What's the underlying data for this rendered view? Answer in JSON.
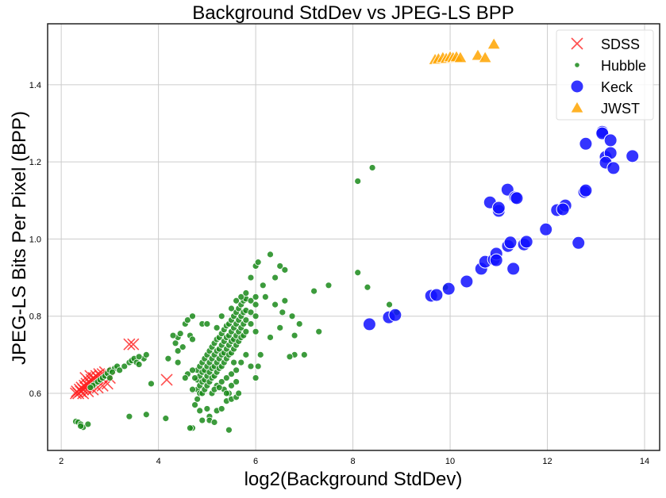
{
  "chart_data": {
    "type": "scatter",
    "title": "Background StdDev vs JPEG-LS BPP",
    "xlabel": "log2(Background StdDev)",
    "ylabel": "JPEG-LS Bits Per Pixel (BPP)",
    "xlim": [
      1.72,
      14.31
    ],
    "ylim": [
      0.452,
      1.558
    ],
    "xticks": [
      2,
      4,
      6,
      8,
      10,
      12,
      14
    ],
    "yticks": [
      0.6,
      0.8,
      1.0,
      1.2,
      1.4
    ],
    "xtick_labels": [
      "2",
      "4",
      "6",
      "8",
      "10",
      "12",
      "14"
    ],
    "ytick_labels": [
      "0.6",
      "0.8",
      "1.0",
      "1.2",
      "1.4"
    ],
    "grid": true,
    "legend_position": "top-right",
    "series": [
      {
        "name": "SDSS",
        "marker": "x",
        "color": "#ff2020",
        "points": [
          [
            2.3,
            0.6
          ],
          [
            2.32,
            0.605
          ],
          [
            2.35,
            0.6
          ],
          [
            2.38,
            0.61
          ],
          [
            2.4,
            0.605
          ],
          [
            2.42,
            0.615
          ],
          [
            2.45,
            0.61
          ],
          [
            2.48,
            0.62
          ],
          [
            2.5,
            0.615
          ],
          [
            2.52,
            0.625
          ],
          [
            2.55,
            0.62
          ],
          [
            2.57,
            0.63
          ],
          [
            2.6,
            0.625
          ],
          [
            2.62,
            0.635
          ],
          [
            2.65,
            0.63
          ],
          [
            2.67,
            0.64
          ],
          [
            2.7,
            0.635
          ],
          [
            2.72,
            0.645
          ],
          [
            2.75,
            0.64
          ],
          [
            2.78,
            0.65
          ],
          [
            2.8,
            0.645
          ],
          [
            2.85,
            0.65
          ],
          [
            2.9,
            0.655
          ],
          [
            2.5,
            0.64
          ],
          [
            2.6,
            0.645
          ],
          [
            2.45,
            0.6
          ],
          [
            2.55,
            0.605
          ],
          [
            2.65,
            0.61
          ],
          [
            2.75,
            0.615
          ],
          [
            2.85,
            0.62
          ],
          [
            2.95,
            0.625
          ],
          [
            3.0,
            0.64
          ],
          [
            3.4,
            0.727
          ],
          [
            3.48,
            0.727
          ],
          [
            4.17,
            0.635
          ]
        ]
      },
      {
        "name": "Hubble",
        "marker": "o",
        "color": "#1a8a1a",
        "points": [
          [
            2.3,
            0.527
          ],
          [
            2.35,
            0.525
          ],
          [
            2.4,
            0.52
          ],
          [
            2.45,
            0.512
          ],
          [
            2.55,
            0.52
          ],
          [
            2.4,
            0.515
          ],
          [
            2.7,
            0.625
          ],
          [
            2.75,
            0.63
          ],
          [
            2.8,
            0.635
          ],
          [
            2.85,
            0.64
          ],
          [
            2.9,
            0.645
          ],
          [
            2.95,
            0.652
          ],
          [
            3.0,
            0.66
          ],
          [
            3.1,
            0.665
          ],
          [
            3.15,
            0.67
          ],
          [
            3.2,
            0.66
          ],
          [
            3.3,
            0.67
          ],
          [
            3.4,
            0.68
          ],
          [
            3.45,
            0.685
          ],
          [
            3.5,
            0.69
          ],
          [
            3.55,
            0.68
          ],
          [
            3.6,
            0.675
          ],
          [
            3.7,
            0.69
          ],
          [
            3.75,
            0.7
          ],
          [
            3.6,
            0.695
          ],
          [
            3.05,
            0.655
          ],
          [
            2.65,
            0.62
          ],
          [
            2.6,
            0.615
          ],
          [
            3.4,
            0.54
          ],
          [
            3.75,
            0.545
          ],
          [
            4.15,
            0.535
          ],
          [
            3.85,
            0.625
          ],
          [
            3.0,
            0.64
          ],
          [
            4.35,
            0.73
          ],
          [
            4.4,
            0.745
          ],
          [
            4.45,
            0.755
          ],
          [
            4.55,
            0.78
          ],
          [
            4.6,
            0.79
          ],
          [
            4.5,
            0.72
          ],
          [
            4.4,
            0.71
          ],
          [
            4.65,
            0.75
          ],
          [
            4.7,
            0.74
          ],
          [
            4.3,
            0.75
          ],
          [
            4.7,
            0.8
          ],
          [
            4.8,
            0.585
          ],
          [
            4.8,
            0.61
          ],
          [
            4.8,
            0.635
          ],
          [
            4.8,
            0.66
          ],
          [
            4.85,
            0.6
          ],
          [
            4.85,
            0.62
          ],
          [
            4.85,
            0.645
          ],
          [
            4.85,
            0.67
          ],
          [
            4.9,
            0.6
          ],
          [
            4.9,
            0.63
          ],
          [
            4.9,
            0.655
          ],
          [
            4.9,
            0.68
          ],
          [
            4.95,
            0.61
          ],
          [
            4.95,
            0.635
          ],
          [
            4.95,
            0.66
          ],
          [
            4.95,
            0.69
          ],
          [
            5.0,
            0.62
          ],
          [
            5.0,
            0.645
          ],
          [
            5.0,
            0.67
          ],
          [
            5.0,
            0.7
          ],
          [
            5.05,
            0.63
          ],
          [
            5.05,
            0.655
          ],
          [
            5.05,
            0.68
          ],
          [
            5.05,
            0.71
          ],
          [
            5.1,
            0.64
          ],
          [
            5.1,
            0.665
          ],
          [
            5.1,
            0.69
          ],
          [
            5.1,
            0.72
          ],
          [
            5.15,
            0.645
          ],
          [
            5.15,
            0.67
          ],
          [
            5.15,
            0.7
          ],
          [
            5.15,
            0.73
          ],
          [
            5.2,
            0.655
          ],
          [
            5.2,
            0.68
          ],
          [
            5.2,
            0.71
          ],
          [
            5.2,
            0.74
          ],
          [
            5.25,
            0.665
          ],
          [
            5.25,
            0.69
          ],
          [
            5.25,
            0.715
          ],
          [
            5.25,
            0.745
          ],
          [
            5.3,
            0.67
          ],
          [
            5.3,
            0.7
          ],
          [
            5.3,
            0.725
          ],
          [
            5.3,
            0.755
          ],
          [
            5.35,
            0.68
          ],
          [
            5.35,
            0.705
          ],
          [
            5.35,
            0.735
          ],
          [
            5.35,
            0.765
          ],
          [
            5.4,
            0.69
          ],
          [
            5.4,
            0.715
          ],
          [
            5.4,
            0.745
          ],
          [
            5.4,
            0.775
          ],
          [
            5.45,
            0.7
          ],
          [
            5.45,
            0.725
          ],
          [
            5.45,
            0.75
          ],
          [
            5.45,
            0.78
          ],
          [
            5.5,
            0.705
          ],
          [
            5.5,
            0.735
          ],
          [
            5.5,
            0.76
          ],
          [
            5.5,
            0.79
          ],
          [
            5.55,
            0.715
          ],
          [
            5.55,
            0.74
          ],
          [
            5.55,
            0.77
          ],
          [
            5.55,
            0.8
          ],
          [
            5.6,
            0.725
          ],
          [
            5.6,
            0.75
          ],
          [
            5.6,
            0.78
          ],
          [
            5.6,
            0.81
          ],
          [
            5.65,
            0.735
          ],
          [
            5.65,
            0.76
          ],
          [
            5.65,
            0.79
          ],
          [
            5.65,
            0.82
          ],
          [
            5.7,
            0.745
          ],
          [
            5.7,
            0.77
          ],
          [
            5.7,
            0.8
          ],
          [
            5.7,
            0.83
          ],
          [
            5.75,
            0.75
          ],
          [
            5.75,
            0.78
          ],
          [
            5.75,
            0.81
          ],
          [
            5.75,
            0.84
          ],
          [
            5.8,
            0.76
          ],
          [
            5.8,
            0.79
          ],
          [
            5.8,
            0.815
          ],
          [
            5.8,
            0.845
          ],
          [
            5.9,
            0.78
          ],
          [
            5.9,
            0.81
          ],
          [
            5.9,
            0.84
          ],
          [
            6.0,
            0.8
          ],
          [
            6.0,
            0.83
          ],
          [
            6.0,
            0.85
          ],
          [
            4.7,
            0.66
          ],
          [
            4.75,
            0.64
          ],
          [
            5.2,
            0.62
          ],
          [
            5.3,
            0.63
          ],
          [
            5.4,
            0.64
          ],
          [
            5.5,
            0.65
          ],
          [
            5.6,
            0.66
          ],
          [
            5.7,
            0.68
          ],
          [
            5.8,
            0.7
          ],
          [
            5.5,
            0.62
          ],
          [
            5.6,
            0.63
          ],
          [
            5.35,
            0.61
          ],
          [
            5.45,
            0.6
          ],
          [
            4.6,
            0.65
          ],
          [
            4.55,
            0.64
          ],
          [
            4.7,
            0.61
          ],
          [
            4.75,
            0.57
          ],
          [
            4.85,
            0.555
          ],
          [
            4.9,
            0.53
          ],
          [
            5.05,
            0.54
          ],
          [
            5.2,
            0.555
          ],
          [
            5.4,
            0.58
          ],
          [
            5.5,
            0.585
          ],
          [
            5.6,
            0.59
          ],
          [
            5.65,
            0.6
          ],
          [
            5.3,
            0.56
          ],
          [
            4.7,
            0.51
          ],
          [
            5.05,
            0.53
          ],
          [
            5.15,
            0.525
          ],
          [
            5.45,
            0.505
          ],
          [
            5.4,
            0.6
          ],
          [
            5.0,
            0.56
          ],
          [
            4.65,
            0.51
          ],
          [
            4.9,
            0.78
          ],
          [
            5.0,
            0.78
          ],
          [
            5.2,
            0.77
          ],
          [
            5.3,
            0.8
          ],
          [
            5.5,
            0.82
          ],
          [
            5.6,
            0.84
          ],
          [
            5.7,
            0.85
          ],
          [
            5.8,
            0.86
          ],
          [
            5.9,
            0.9
          ],
          [
            6.0,
            0.93
          ],
          [
            6.05,
            0.94
          ],
          [
            6.3,
            0.96
          ],
          [
            6.5,
            0.93
          ],
          [
            6.6,
            0.92
          ],
          [
            6.4,
            0.9
          ],
          [
            6.15,
            0.88
          ],
          [
            6.2,
            0.85
          ],
          [
            6.4,
            0.83
          ],
          [
            6.6,
            0.84
          ],
          [
            6.55,
            0.81
          ],
          [
            6.75,
            0.8
          ],
          [
            6.9,
            0.78
          ],
          [
            6.8,
            0.75
          ],
          [
            7.2,
            0.865
          ],
          [
            7.5,
            0.88
          ],
          [
            7.3,
            0.76
          ],
          [
            7.0,
            0.7
          ],
          [
            6.8,
            0.7
          ],
          [
            6.7,
            0.695
          ],
          [
            6.3,
            0.745
          ],
          [
            6.5,
            0.77
          ],
          [
            6.0,
            0.76
          ],
          [
            6.1,
            0.7
          ],
          [
            6.05,
            0.67
          ],
          [
            6.0,
            0.64
          ],
          [
            5.9,
            0.67
          ],
          [
            5.55,
            0.68
          ],
          [
            4.2,
            0.69
          ],
          [
            4.4,
            0.68
          ],
          [
            5.1,
            0.6
          ],
          [
            5.15,
            0.61
          ],
          [
            5.25,
            0.615
          ],
          [
            8.1,
            1.15
          ],
          [
            8.4,
            1.185
          ],
          [
            8.1,
            0.913
          ],
          [
            8.3,
            0.875
          ],
          [
            8.75,
            0.83
          ],
          [
            8.9,
            0.81
          ],
          [
            9.9,
            0.875
          ]
        ]
      },
      {
        "name": "Keck",
        "marker": "o",
        "color": "#1010ff",
        "points": [
          [
            8.34,
            0.779
          ],
          [
            8.74,
            0.797
          ],
          [
            8.87,
            0.803
          ],
          [
            9.61,
            0.853
          ],
          [
            9.72,
            0.855
          ],
          [
            9.97,
            0.871
          ],
          [
            10.34,
            0.89
          ],
          [
            10.64,
            0.923
          ],
          [
            10.72,
            0.941
          ],
          [
            10.9,
            0.947
          ],
          [
            10.95,
            0.962
          ],
          [
            10.95,
            0.945
          ],
          [
            11.3,
            0.923
          ],
          [
            11.19,
            0.982
          ],
          [
            11.24,
            0.991
          ],
          [
            11.52,
            0.986
          ],
          [
            11.57,
            0.993
          ],
          [
            11.97,
            1.025
          ],
          [
            12.2,
            1.075
          ],
          [
            12.37,
            1.087
          ],
          [
            12.32,
            1.077
          ],
          [
            12.64,
            0.99
          ],
          [
            12.76,
            1.122
          ],
          [
            12.79,
            1.126
          ],
          [
            10.82,
            1.095
          ],
          [
            11.0,
            1.073
          ],
          [
            11.0,
            1.081
          ],
          [
            11.18,
            1.128
          ],
          [
            11.34,
            1.108
          ],
          [
            11.37,
            1.106
          ],
          [
            12.79,
            1.247
          ],
          [
            13.13,
            1.278
          ],
          [
            13.13,
            1.274
          ],
          [
            13.3,
            1.256
          ],
          [
            13.2,
            1.213
          ],
          [
            13.3,
            1.223
          ],
          [
            13.2,
            1.198
          ],
          [
            13.36,
            1.184
          ],
          [
            13.75,
            1.215
          ]
        ]
      },
      {
        "name": "JWST",
        "marker": "^",
        "color": "#ffa500",
        "points": [
          [
            9.69,
            1.465
          ],
          [
            9.76,
            1.467
          ],
          [
            9.85,
            1.47
          ],
          [
            9.92,
            1.468
          ],
          [
            10.0,
            1.472
          ],
          [
            10.06,
            1.47
          ],
          [
            10.13,
            1.472
          ],
          [
            10.21,
            1.47
          ],
          [
            10.57,
            1.476
          ],
          [
            10.72,
            1.47
          ],
          [
            10.9,
            1.505
          ]
        ]
      }
    ]
  }
}
